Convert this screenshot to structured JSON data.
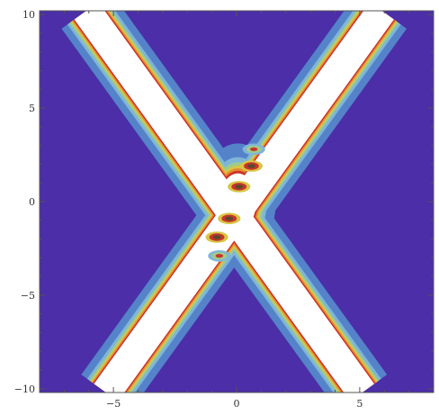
{
  "chart_data": {
    "type": "heatmap",
    "title": "",
    "xlabel": "",
    "ylabel": "",
    "xlim": [
      -8,
      8
    ],
    "ylim": [
      -10.2,
      10.2
    ],
    "grid": false,
    "x_ticks": [
      {
        "value": -5,
        "label": "−5"
      },
      {
        "value": 0,
        "label": "0"
      },
      {
        "value": 5,
        "label": "5"
      }
    ],
    "y_ticks": [
      {
        "value": 10,
        "label": "10"
      },
      {
        "value": 5,
        "label": "5"
      },
      {
        "value": 0,
        "label": "0"
      },
      {
        "value": -5,
        "label": "−5"
      },
      {
        "value": -10,
        "label": "−10"
      }
    ],
    "minor_x_step": 1,
    "minor_y_step": 1,
    "contour_levels": [
      {
        "color": "#4b2ea8"
      },
      {
        "color": "#5583c9"
      },
      {
        "color": "#7fb6d8"
      },
      {
        "color": "#9fcb8b"
      },
      {
        "color": "#d8c645"
      },
      {
        "color": "#e88a2f"
      },
      {
        "color": "#c9342a"
      },
      {
        "color": "#ffffff"
      }
    ],
    "features": [
      {
        "name": "ridge-1",
        "from": [
          -5.3,
          -10.2
        ],
        "to": [
          5.9,
          10.2
        ]
      },
      {
        "name": "ridge-2",
        "from": [
          -6.1,
          10.2
        ],
        "to": [
          5.1,
          -10.2
        ]
      }
    ],
    "blobs": [
      [
        0.6,
        1.9
      ],
      [
        0.1,
        0.8
      ],
      [
        -0.3,
        -0.9
      ],
      [
        -0.8,
        -1.9
      ],
      [
        0.7,
        2.8
      ],
      [
        -0.7,
        -2.9
      ]
    ]
  }
}
